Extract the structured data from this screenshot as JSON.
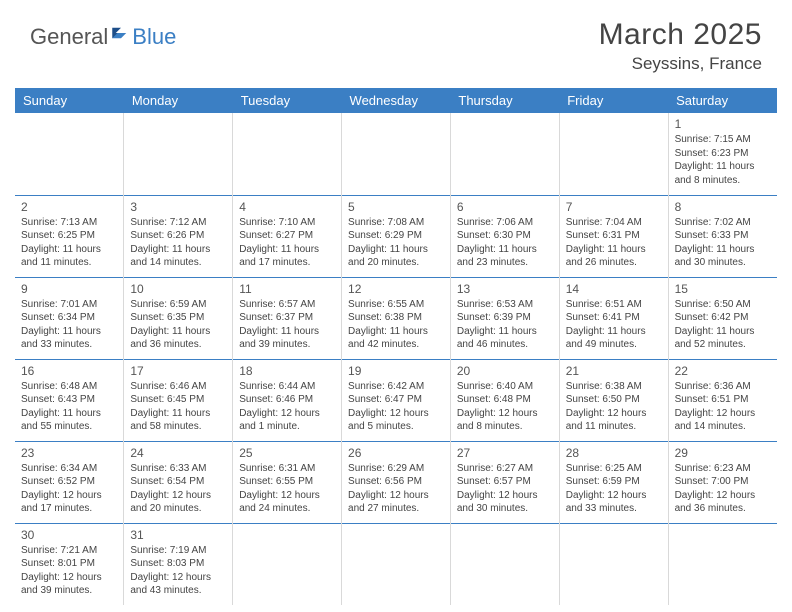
{
  "brand": {
    "part1": "General",
    "part2": "Blue"
  },
  "header": {
    "title": "March 2025",
    "location": "Seyssins, France"
  },
  "styling": {
    "header_bg": "#3b7fc4",
    "header_text": "#ffffff",
    "cell_border_top": "#3b7fc4",
    "cell_border_side": "#d9d9d9",
    "text_color": "#444444",
    "font_family": "Arial",
    "month_title_size": 30,
    "location_size": 17,
    "weekday_size": 13,
    "cell_text_size": 10,
    "date_num_size": 12
  },
  "weekdays": [
    "Sunday",
    "Monday",
    "Tuesday",
    "Wednesday",
    "Thursday",
    "Friday",
    "Saturday"
  ],
  "weeks": [
    [
      null,
      null,
      null,
      null,
      null,
      null,
      {
        "d": "1",
        "sr": "Sunrise: 7:15 AM",
        "ss": "Sunset: 6:23 PM",
        "dl": "Daylight: 11 hours and 8 minutes."
      }
    ],
    [
      {
        "d": "2",
        "sr": "Sunrise: 7:13 AM",
        "ss": "Sunset: 6:25 PM",
        "dl": "Daylight: 11 hours and 11 minutes."
      },
      {
        "d": "3",
        "sr": "Sunrise: 7:12 AM",
        "ss": "Sunset: 6:26 PM",
        "dl": "Daylight: 11 hours and 14 minutes."
      },
      {
        "d": "4",
        "sr": "Sunrise: 7:10 AM",
        "ss": "Sunset: 6:27 PM",
        "dl": "Daylight: 11 hours and 17 minutes."
      },
      {
        "d": "5",
        "sr": "Sunrise: 7:08 AM",
        "ss": "Sunset: 6:29 PM",
        "dl": "Daylight: 11 hours and 20 minutes."
      },
      {
        "d": "6",
        "sr": "Sunrise: 7:06 AM",
        "ss": "Sunset: 6:30 PM",
        "dl": "Daylight: 11 hours and 23 minutes."
      },
      {
        "d": "7",
        "sr": "Sunrise: 7:04 AM",
        "ss": "Sunset: 6:31 PM",
        "dl": "Daylight: 11 hours and 26 minutes."
      },
      {
        "d": "8",
        "sr": "Sunrise: 7:02 AM",
        "ss": "Sunset: 6:33 PM",
        "dl": "Daylight: 11 hours and 30 minutes."
      }
    ],
    [
      {
        "d": "9",
        "sr": "Sunrise: 7:01 AM",
        "ss": "Sunset: 6:34 PM",
        "dl": "Daylight: 11 hours and 33 minutes."
      },
      {
        "d": "10",
        "sr": "Sunrise: 6:59 AM",
        "ss": "Sunset: 6:35 PM",
        "dl": "Daylight: 11 hours and 36 minutes."
      },
      {
        "d": "11",
        "sr": "Sunrise: 6:57 AM",
        "ss": "Sunset: 6:37 PM",
        "dl": "Daylight: 11 hours and 39 minutes."
      },
      {
        "d": "12",
        "sr": "Sunrise: 6:55 AM",
        "ss": "Sunset: 6:38 PM",
        "dl": "Daylight: 11 hours and 42 minutes."
      },
      {
        "d": "13",
        "sr": "Sunrise: 6:53 AM",
        "ss": "Sunset: 6:39 PM",
        "dl": "Daylight: 11 hours and 46 minutes."
      },
      {
        "d": "14",
        "sr": "Sunrise: 6:51 AM",
        "ss": "Sunset: 6:41 PM",
        "dl": "Daylight: 11 hours and 49 minutes."
      },
      {
        "d": "15",
        "sr": "Sunrise: 6:50 AM",
        "ss": "Sunset: 6:42 PM",
        "dl": "Daylight: 11 hours and 52 minutes."
      }
    ],
    [
      {
        "d": "16",
        "sr": "Sunrise: 6:48 AM",
        "ss": "Sunset: 6:43 PM",
        "dl": "Daylight: 11 hours and 55 minutes."
      },
      {
        "d": "17",
        "sr": "Sunrise: 6:46 AM",
        "ss": "Sunset: 6:45 PM",
        "dl": "Daylight: 11 hours and 58 minutes."
      },
      {
        "d": "18",
        "sr": "Sunrise: 6:44 AM",
        "ss": "Sunset: 6:46 PM",
        "dl": "Daylight: 12 hours and 1 minute."
      },
      {
        "d": "19",
        "sr": "Sunrise: 6:42 AM",
        "ss": "Sunset: 6:47 PM",
        "dl": "Daylight: 12 hours and 5 minutes."
      },
      {
        "d": "20",
        "sr": "Sunrise: 6:40 AM",
        "ss": "Sunset: 6:48 PM",
        "dl": "Daylight: 12 hours and 8 minutes."
      },
      {
        "d": "21",
        "sr": "Sunrise: 6:38 AM",
        "ss": "Sunset: 6:50 PM",
        "dl": "Daylight: 12 hours and 11 minutes."
      },
      {
        "d": "22",
        "sr": "Sunrise: 6:36 AM",
        "ss": "Sunset: 6:51 PM",
        "dl": "Daylight: 12 hours and 14 minutes."
      }
    ],
    [
      {
        "d": "23",
        "sr": "Sunrise: 6:34 AM",
        "ss": "Sunset: 6:52 PM",
        "dl": "Daylight: 12 hours and 17 minutes."
      },
      {
        "d": "24",
        "sr": "Sunrise: 6:33 AM",
        "ss": "Sunset: 6:54 PM",
        "dl": "Daylight: 12 hours and 20 minutes."
      },
      {
        "d": "25",
        "sr": "Sunrise: 6:31 AM",
        "ss": "Sunset: 6:55 PM",
        "dl": "Daylight: 12 hours and 24 minutes."
      },
      {
        "d": "26",
        "sr": "Sunrise: 6:29 AM",
        "ss": "Sunset: 6:56 PM",
        "dl": "Daylight: 12 hours and 27 minutes."
      },
      {
        "d": "27",
        "sr": "Sunrise: 6:27 AM",
        "ss": "Sunset: 6:57 PM",
        "dl": "Daylight: 12 hours and 30 minutes."
      },
      {
        "d": "28",
        "sr": "Sunrise: 6:25 AM",
        "ss": "Sunset: 6:59 PM",
        "dl": "Daylight: 12 hours and 33 minutes."
      },
      {
        "d": "29",
        "sr": "Sunrise: 6:23 AM",
        "ss": "Sunset: 7:00 PM",
        "dl": "Daylight: 12 hours and 36 minutes."
      }
    ],
    [
      {
        "d": "30",
        "sr": "Sunrise: 7:21 AM",
        "ss": "Sunset: 8:01 PM",
        "dl": "Daylight: 12 hours and 39 minutes."
      },
      {
        "d": "31",
        "sr": "Sunrise: 7:19 AM",
        "ss": "Sunset: 8:03 PM",
        "dl": "Daylight: 12 hours and 43 minutes."
      },
      null,
      null,
      null,
      null,
      null
    ]
  ]
}
